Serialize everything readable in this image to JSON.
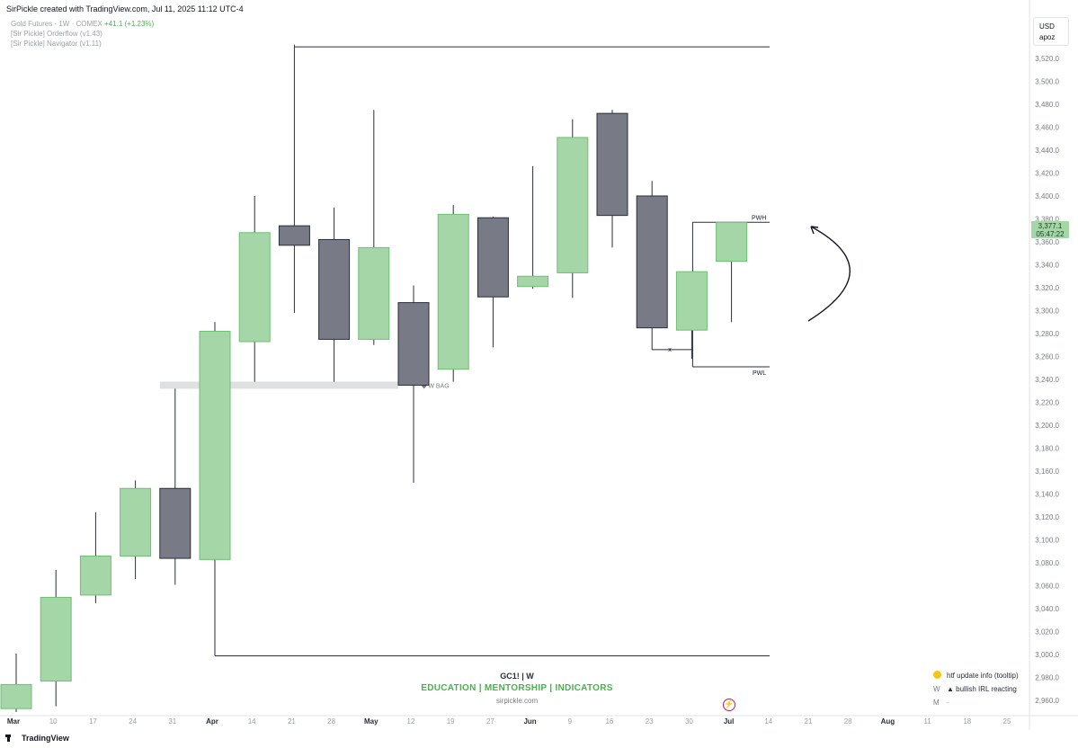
{
  "header": {
    "caption": "SirPickle created with TradingView.com, Jul 11, 2025 11:12 UTC-4",
    "symbol_line": "Gold Futures · 1W · COMEX",
    "change": "+41.1 (+1.23%)",
    "indicator_1": "[Sir Pickle] Orderflow (v1.43)",
    "indicator_2": "[Sir Pickle] Navigator (v1.11)"
  },
  "scale_box": {
    "currency": "USD",
    "mode": "apoz"
  },
  "price_tag": {
    "price": "3,377.1",
    "countdown": "05:47:22"
  },
  "watermark": {
    "symbol": "GC1!  |  W",
    "tagline": "EDUCATION  |  MENTORSHIP  |  INDICATORS",
    "site": "sirpickle.com"
  },
  "status_table": [
    {
      "key": "",
      "value": "htf update info (tooltip)",
      "icon": "yellow-dot-icon"
    },
    {
      "key": "W",
      "value": "▲ bullish IRL reacting"
    },
    {
      "key": "M",
      "value": "-"
    }
  ],
  "footer": {
    "brand": "TradingView"
  },
  "colors": {
    "bull": "#a5d6a7",
    "bull_border": "#6fbf73",
    "bear": "#787b86",
    "bear_border": "#2a2e39",
    "wick": "#2a2e39"
  },
  "chart_data": {
    "type": "candlestick",
    "timeframe": "1W",
    "ylim": [
      2950,
      3545
    ],
    "y_ticks": [
      2960,
      2980,
      3000,
      3020,
      3040,
      3060,
      3080,
      3100,
      3120,
      3140,
      3160,
      3180,
      3200,
      3220,
      3240,
      3260,
      3280,
      3300,
      3320,
      3340,
      3360,
      3380,
      3400,
      3420,
      3440,
      3460,
      3480,
      3500,
      3520
    ],
    "y_tick_labels": [
      "2,960.0",
      "2,980.0",
      "3,000.0",
      "3,020.0",
      "3,040.0",
      "3,060.0",
      "3,080.0",
      "3,100.0",
      "3,120.0",
      "3,140.0",
      "3,160.0",
      "3,180.0",
      "3,200.0",
      "3,220.0",
      "3,240.0",
      "3,260.0",
      "3,280.0",
      "3,300.0",
      "3,320.0",
      "3,340.0",
      "3,360.0",
      "3,380.0",
      "3,400.0",
      "3,420.0",
      "3,440.0",
      "3,460.0",
      "3,480.0",
      "3,500.0",
      "3,520.0"
    ],
    "x_labels": [
      "Mar",
      "10",
      "17",
      "24",
      "31",
      "Apr",
      "14",
      "21",
      "28",
      "May",
      "12",
      "19",
      "27",
      "Jun",
      "9",
      "16",
      "23",
      "30",
      "Jul",
      "14",
      "21",
      "28",
      "Aug",
      "11",
      "18",
      "25"
    ],
    "x_label_bold": [
      true,
      false,
      false,
      false,
      false,
      true,
      false,
      false,
      false,
      true,
      false,
      false,
      false,
      true,
      false,
      false,
      false,
      false,
      true,
      false,
      false,
      false,
      true,
      false,
      false,
      false
    ],
    "candles": [
      {
        "o": 2953,
        "h": 3001,
        "l": 2950,
        "c": 2974
      },
      {
        "o": 2977,
        "h": 3074,
        "l": 2955,
        "c": 3050
      },
      {
        "o": 3052,
        "h": 3124,
        "l": 3045,
        "c": 3086
      },
      {
        "o": 3086,
        "h": 3152,
        "l": 3066,
        "c": 3145
      },
      {
        "o": 3145,
        "h": 3232,
        "l": 3061,
        "c": 3084
      },
      {
        "o": 3083,
        "h": 3290,
        "l": 2999,
        "c": 3282
      },
      {
        "o": 3273,
        "h": 3400,
        "l": 3238,
        "c": 3368
      },
      {
        "o": 3374,
        "h": 3532,
        "l": 3298,
        "c": 3357
      },
      {
        "o": 3362,
        "h": 3390,
        "l": 3238,
        "c": 3275
      },
      {
        "o": 3275,
        "h": 3475,
        "l": 3270,
        "c": 3355
      },
      {
        "o": 3307,
        "h": 3322,
        "l": 3150,
        "c": 3235
      },
      {
        "o": 3249,
        "h": 3392,
        "l": 3238,
        "c": 3384
      },
      {
        "o": 3381,
        "h": 3382,
        "l": 3268,
        "c": 3312
      },
      {
        "o": 3321,
        "h": 3426,
        "l": 3319,
        "c": 3330
      },
      {
        "o": 3333,
        "h": 3467,
        "l": 3311,
        "c": 3451
      },
      {
        "o": 3472,
        "h": 3475,
        "l": 3355,
        "c": 3383
      },
      {
        "o": 3400,
        "h": 3413,
        "l": 3285,
        "c": 3285
      },
      {
        "o": 3283,
        "h": 3334,
        "l": 3258,
        "c": 3334
      },
      {
        "o": 3343,
        "h": 3377,
        "l": 3290,
        "c": 3377
      }
    ],
    "levels": [
      {
        "label": "",
        "price": 3530
      },
      {
        "label": "",
        "price": 2999
      },
      {
        "label": "PWH",
        "price": 3377
      },
      {
        "label": "PWL",
        "price": 3251
      },
      {
        "label": "x",
        "price": 3266
      }
    ],
    "zone": {
      "label": "◆ W BAG",
      "price": 3235
    }
  }
}
